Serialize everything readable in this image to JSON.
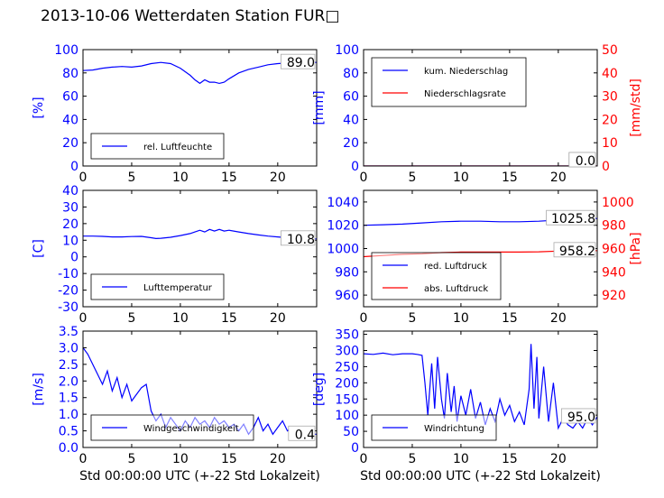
{
  "page": {
    "title": "2013-10-06 Wetterdaten Station FUR□"
  },
  "colors": {
    "blue": "#0000ff",
    "red": "#ff0000",
    "black": "#000000"
  },
  "chart_data": [
    {
      "id": "humidity",
      "type": "line",
      "xlim": [
        0,
        24
      ],
      "ylim": [
        0,
        100
      ],
      "xticks": [
        0,
        5,
        10,
        15,
        20
      ],
      "yticks": [
        0,
        20,
        40,
        60,
        80,
        100
      ],
      "xlabel": "",
      "ylabel": "[%]",
      "last_value_label": "89.0",
      "legend_loc": "lower-left",
      "series": [
        {
          "name": "rel. Luftfeuchte",
          "color": "#0000ff",
          "x": [
            0,
            1,
            2,
            3,
            4,
            5,
            6,
            7,
            8,
            9,
            10,
            11,
            11.5,
            12,
            12.5,
            13,
            13.5,
            14,
            14.5,
            15,
            16,
            17,
            18,
            19,
            20,
            21,
            22,
            23,
            24
          ],
          "y": [
            82,
            82.5,
            84,
            85,
            85.5,
            85,
            86,
            88,
            89,
            88,
            84,
            78,
            74,
            71,
            74,
            72,
            72,
            71,
            72,
            75,
            80,
            83,
            85,
            87,
            88,
            88.5,
            89,
            89,
            89
          ]
        }
      ]
    },
    {
      "id": "precip",
      "type": "line",
      "xlim": [
        0,
        24
      ],
      "ylim": [
        0,
        100
      ],
      "y2lim": [
        0,
        50
      ],
      "xticks": [
        0,
        5,
        10,
        15,
        20
      ],
      "yticks": [
        0,
        20,
        40,
        60,
        80,
        100
      ],
      "y2ticks": [
        0,
        10,
        20,
        30,
        40,
        50
      ],
      "xlabel": "",
      "ylabel": "[mm]",
      "y2label": "[mm/std]",
      "last_value_labels": [
        "0.0",
        "0.0"
      ],
      "legend_loc": "upper-left",
      "series": [
        {
          "name": "kum. Niederschlag",
          "color": "#0000ff",
          "axis": "left",
          "x": [
            0,
            24
          ],
          "y": [
            0,
            0
          ]
        },
        {
          "name": "Niederschlagsrate",
          "color": "#ff0000",
          "axis": "right",
          "x": [
            0,
            24
          ],
          "y": [
            0,
            0
          ]
        }
      ]
    },
    {
      "id": "temperature",
      "type": "line",
      "xlim": [
        0,
        24
      ],
      "ylim": [
        -30,
        40
      ],
      "xticks": [
        0,
        5,
        10,
        15,
        20
      ],
      "yticks": [
        -30,
        -20,
        -10,
        0,
        10,
        20,
        30,
        40
      ],
      "xlabel": "",
      "ylabel": "[C]",
      "last_value_label": "10.8",
      "legend_loc": "lower-left",
      "series": [
        {
          "name": "Lufttemperatur",
          "color": "#0000ff",
          "x": [
            0,
            1,
            2,
            3,
            4,
            5,
            6,
            7,
            7.5,
            8,
            9,
            10,
            11,
            11.5,
            12,
            12.5,
            13,
            13.5,
            14,
            14.5,
            15,
            16,
            17,
            18,
            19,
            20,
            21,
            22,
            23,
            24
          ],
          "y": [
            12.5,
            12.5,
            12.3,
            12,
            12,
            12.2,
            12.3,
            11.5,
            11,
            11.2,
            11.8,
            12.8,
            14,
            15,
            16,
            15,
            16.5,
            15.5,
            16.5,
            15.5,
            16,
            15,
            14,
            13.2,
            12.5,
            12,
            11.5,
            11,
            10.8,
            10.8
          ]
        }
      ]
    },
    {
      "id": "pressure",
      "type": "line",
      "xlim": [
        0,
        24
      ],
      "ylim": [
        950,
        1050
      ],
      "y2lim": [
        910,
        1010
      ],
      "xticks": [
        0,
        5,
        10,
        15,
        20
      ],
      "yticks": [
        960,
        980,
        1000,
        1020,
        1040
      ],
      "y2ticks": [
        920,
        940,
        960,
        980,
        1000
      ],
      "xlabel": "",
      "ylabel": "",
      "y2label": "[hPa]",
      "last_value_labels": [
        "1025.8",
        "958.2"
      ],
      "legend_loc": "lower-left",
      "series": [
        {
          "name": "red. Luftdruck",
          "color": "#0000ff",
          "axis": "left",
          "x": [
            0,
            2,
            4,
            6,
            8,
            10,
            12,
            14,
            16,
            18,
            20,
            22,
            24
          ],
          "y": [
            1020,
            1020.5,
            1021,
            1022,
            1023,
            1023.5,
            1023.5,
            1023,
            1023,
            1023.5,
            1024.5,
            1025.5,
            1025.8
          ]
        },
        {
          "name": "abs. Luftdruck",
          "color": "#ff0000",
          "axis": "right",
          "x": [
            0,
            2,
            4,
            6,
            8,
            10,
            12,
            14,
            16,
            18,
            20,
            22,
            24
          ],
          "y": [
            953,
            954,
            955,
            955.5,
            956.5,
            957,
            957,
            957,
            957,
            957.2,
            957.8,
            958.1,
            958.2
          ]
        }
      ]
    },
    {
      "id": "windspeed",
      "type": "line",
      "xlim": [
        0,
        24
      ],
      "ylim": [
        0,
        3.5
      ],
      "xticks": [
        0,
        5,
        10,
        15,
        20
      ],
      "yticks": [
        0.0,
        0.5,
        1.0,
        1.5,
        2.0,
        2.5,
        3.0,
        3.5
      ],
      "xlabel": "Std 00:00:00 UTC (+-22 Std Lokalzeit)",
      "ylabel": "[m/s]",
      "last_value_label": "0.4",
      "legend_loc": "lower-left",
      "series": [
        {
          "name": "Windgeschwindigkeit",
          "color": "#0000ff",
          "x": [
            0,
            0.5,
            1,
            1.5,
            2,
            2.5,
            3,
            3.5,
            4,
            4.5,
            5,
            5.5,
            6,
            6.5,
            7,
            7.5,
            8,
            8.5,
            9,
            9.5,
            10,
            10.5,
            11,
            11.5,
            12,
            12.5,
            13,
            13.5,
            14,
            14.5,
            15,
            15.5,
            16,
            16.5,
            17,
            17.5,
            18,
            18.5,
            19,
            19.5,
            20,
            20.5,
            21,
            21.5,
            22,
            22.5,
            23,
            23.5,
            24
          ],
          "y": [
            3.0,
            2.8,
            2.5,
            2.2,
            1.9,
            2.3,
            1.7,
            2.1,
            1.5,
            1.9,
            1.4,
            1.6,
            1.8,
            1.9,
            1.1,
            0.8,
            1.0,
            0.6,
            0.9,
            0.7,
            0.5,
            0.8,
            0.6,
            0.9,
            0.7,
            0.8,
            0.6,
            0.9,
            0.7,
            0.8,
            0.6,
            0.7,
            0.5,
            0.7,
            0.4,
            0.6,
            0.9,
            0.5,
            0.7,
            0.4,
            0.6,
            0.8,
            0.5,
            0.6,
            0.3,
            0.5,
            0.6,
            0.4,
            0.4
          ]
        }
      ]
    },
    {
      "id": "winddir",
      "type": "line",
      "xlim": [
        0,
        24
      ],
      "ylim": [
        0,
        360
      ],
      "xticks": [
        0,
        5,
        10,
        15,
        20
      ],
      "yticks": [
        0,
        50,
        100,
        150,
        200,
        250,
        300,
        350
      ],
      "xlabel": "Std 00:00:00 UTC (+-22 Std Lokalzeit)",
      "ylabel": "[deg]",
      "last_value_label": "95.0",
      "legend_loc": "lower-left",
      "series": [
        {
          "name": "Windrichtung",
          "color": "#0000ff",
          "x": [
            0,
            1,
            2,
            3,
            4,
            5,
            5.5,
            6,
            6.3,
            6.6,
            7,
            7.3,
            7.6,
            8,
            8.3,
            8.6,
            9,
            9.3,
            9.6,
            10,
            10.5,
            11,
            11.5,
            12,
            12.5,
            13,
            13.5,
            14,
            14.5,
            15,
            15.5,
            16,
            16.5,
            17,
            17.2,
            17.5,
            17.8,
            18,
            18.5,
            19,
            19.5,
            20,
            20.5,
            21,
            21.5,
            22,
            22.5,
            23,
            23.5,
            24
          ],
          "y": [
            290,
            288,
            292,
            287,
            290,
            290,
            288,
            285,
            200,
            100,
            260,
            120,
            280,
            150,
            90,
            230,
            110,
            190,
            80,
            160,
            100,
            180,
            90,
            140,
            70,
            120,
            80,
            150,
            100,
            130,
            80,
            110,
            70,
            180,
            320,
            120,
            280,
            90,
            250,
            80,
            200,
            60,
            90,
            70,
            60,
            80,
            60,
            90,
            70,
            95
          ]
        }
      ]
    }
  ]
}
